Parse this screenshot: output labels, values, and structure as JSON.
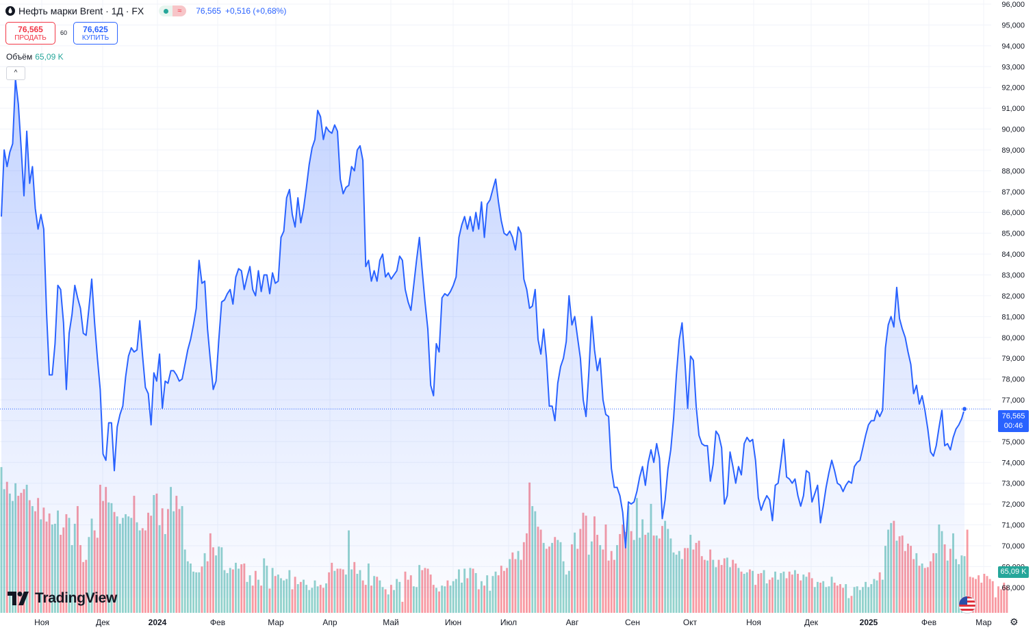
{
  "header": {
    "symbol_title": "Нефть марки Brent · 1Д · FX",
    "last_price": "76,565",
    "change": "+0,516 (+0,68%)",
    "sell_price": "76,565",
    "sell_label": "ПРОДАТЬ",
    "spread": "60",
    "buy_price": "76,625",
    "buy_label": "КУПИТЬ",
    "volume_label": "Объём",
    "volume_value": "65,09 K",
    "collapse_glyph": "^",
    "pill_glyph": "≈"
  },
  "price_tag": {
    "price": "76,565",
    "countdown": "00:46"
  },
  "volume_tag": "65,09 K",
  "brand": {
    "name": "TradingView"
  },
  "colors": {
    "line": "#2962ff",
    "area": "#2962ff",
    "up": "#26a69a",
    "down": "#f23645",
    "grid": "#f0f3fa"
  },
  "chart_data": {
    "type": "line",
    "title": "Нефть марки Brent · 1Д · FX",
    "y_axis": {
      "range": [
        67.5,
        96.1
      ],
      "ticks": [
        68,
        69,
        70,
        71,
        72,
        73,
        74,
        75,
        76,
        77,
        78,
        79,
        80,
        81,
        82,
        83,
        84,
        85,
        86,
        87,
        88,
        89,
        90,
        91,
        92,
        93,
        94,
        95,
        96
      ],
      "tick_labels": [
        "68,000",
        "69,000",
        "70,000",
        "71,000",
        "72,000",
        "73,000",
        "74,000",
        "75,000",
        "76,000",
        "77,000",
        "78,000",
        "79,000",
        "80,000",
        "81,000",
        "82,000",
        "83,000",
        "84,000",
        "85,000",
        "86,000",
        "87,000",
        "88,000",
        "89,000",
        "90,000",
        "91,000",
        "92,000",
        "93,000",
        "94,000",
        "95,000",
        "96,000"
      ]
    },
    "x_axis": {
      "labels": [
        "Ноя",
        "Дек",
        "2024",
        "Фев",
        "Мар",
        "Апр",
        "Май",
        "Июн",
        "Июл",
        "Авг",
        "Сен",
        "Окт",
        "Ноя",
        "Дек",
        "2025",
        "Фев",
        "Мар"
      ]
    },
    "grid": true,
    "last_value": 76.565,
    "series": [
      {
        "values": [
          85.8,
          89.0,
          88.2,
          88.9,
          89.3,
          92.4,
          91.2,
          89.1,
          86.8,
          89.9,
          87.4,
          88.2,
          86.2,
          85.2,
          85.9,
          85.2,
          81.2,
          78.2,
          78.2,
          79.7,
          82.5,
          82.3,
          80.7,
          77.5,
          80.2,
          81.1,
          82.5,
          81.9,
          81.4,
          80.2,
          80.1,
          81.4,
          82.8,
          80.7,
          79.0,
          77.5,
          74.4,
          74.1,
          75.9,
          75.9,
          73.6,
          75.7,
          76.3,
          76.7,
          78.1,
          79.1,
          79.5,
          79.3,
          79.4,
          80.8,
          79.1,
          77.6,
          77.3,
          75.8,
          78.3,
          77.9,
          79.2,
          76.6,
          77.9,
          77.8,
          78.4,
          78.4,
          78.2,
          77.9,
          78.0,
          78.7,
          79.4,
          79.9,
          80.6,
          81.4,
          83.7,
          82.6,
          82.7,
          80.4,
          78.9,
          77.5,
          77.9,
          79.9,
          81.7,
          81.8,
          82.1,
          82.3,
          81.6,
          82.9,
          83.3,
          83.2,
          82.3,
          82.9,
          83.4,
          82.3,
          82.0,
          83.2,
          82.2,
          83.0,
          83.0,
          82.1,
          83.1,
          82.6,
          82.7,
          84.8,
          85.1,
          86.7,
          87.1,
          85.9,
          85.3,
          86.7,
          85.5,
          86.2,
          87.2,
          88.3,
          89.1,
          89.5,
          90.9,
          90.6,
          89.5,
          90.1,
          89.9,
          89.8,
          90.2,
          89.9,
          87.6,
          86.9,
          87.2,
          87.3,
          88.2,
          88.0,
          89.0,
          89.2,
          88.5,
          83.4,
          83.7,
          82.7,
          83.2,
          82.7,
          83.7,
          84.0,
          82.9,
          83.1,
          82.8,
          83.0,
          83.2,
          83.9,
          83.7,
          82.3,
          81.7,
          81.3,
          82.5,
          83.7,
          84.8,
          83.2,
          81.7,
          80.4,
          77.7,
          77.2,
          79.7,
          79.3,
          81.9,
          82.1,
          82.0,
          82.2,
          82.5,
          82.9,
          84.8,
          85.4,
          85.8,
          85.2,
          85.8,
          85.1,
          86.0,
          85.2,
          86.5,
          84.8,
          86.4,
          86.6,
          87.1,
          87.6,
          86.5,
          85.6,
          85.0,
          84.9,
          85.1,
          84.8,
          84.2,
          85.3,
          85.0,
          82.8,
          82.3,
          81.4,
          81.5,
          82.3,
          79.9,
          79.2,
          80.4,
          79.0,
          76.7,
          76.7,
          76.0,
          77.8,
          78.6,
          79.0,
          79.8,
          82.0,
          80.6,
          81.0,
          80.0,
          79.0,
          77.0,
          76.2,
          78.3,
          81.0,
          79.4,
          78.4,
          79.0,
          77.0,
          76.3,
          76.2,
          73.7,
          72.8,
          72.8,
          72.4,
          71.6,
          69.9,
          72.1,
          72.0,
          72.1,
          72.6,
          73.3,
          73.8,
          72.9,
          74.0,
          74.6,
          74.0,
          74.9,
          74.2,
          71.3,
          72.2,
          73.7,
          74.6,
          76.1,
          78.2,
          79.9,
          80.7,
          78.9,
          76.6,
          79.1,
          78.9,
          76.7,
          75.3,
          74.9,
          74.8,
          74.8,
          73.1,
          73.9,
          75.5,
          75.3,
          74.7,
          72.0,
          72.4,
          74.5,
          73.8,
          73.0,
          73.8,
          73.4,
          74.9,
          75.2,
          75.0,
          75.1,
          74.1,
          72.3,
          71.7,
          72.1,
          72.4,
          72.2,
          71.2,
          72.9,
          73.0,
          74.0,
          75.1,
          73.3,
          73.2,
          73.0,
          73.2,
          72.4,
          71.9,
          72.4,
          73.6,
          73.5,
          72.1,
          72.5,
          72.9,
          71.1,
          71.9,
          72.8,
          73.5,
          74.1,
          73.6,
          73.0,
          72.9,
          72.6,
          72.9,
          73.1,
          73.0,
          73.8,
          74.0,
          74.1,
          74.7,
          75.3,
          75.8,
          76.0,
          76.0,
          76.5,
          76.2,
          76.5,
          79.5,
          80.6,
          81.0,
          80.5,
          82.4,
          80.9,
          80.4,
          80.0,
          79.3,
          78.7,
          77.3,
          77.7,
          76.8,
          77.2,
          76.5,
          75.6,
          74.5,
          74.3,
          74.8,
          75.7,
          76.5,
          74.8,
          74.9,
          74.6,
          75.2,
          75.6,
          75.8,
          76.1,
          76.565
        ]
      },
      {
        "name": "Объём",
        "values": [
          1.98,
          1.68,
          1.78,
          1.62,
          1.52,
          1.76,
          1.59,
          1.63,
          1.68,
          1.74,
          1.53,
          1.45,
          1.38,
          1.56,
          1.27,
          1.43,
          1.24,
          1.35,
          1.2,
          1.21,
          1.39,
          1.06,
          1.16,
          1.34,
          1.29,
          0.92,
          1.21,
          1.45,
          0.92,
          0.69,
          0.72,
          1.03,
          1.28,
          1.12,
          1.02,
          1.74,
          1.52,
          1.71,
          1.5,
          1.49,
          1.37,
          1.31,
          1.21,
          1.29,
          1.34,
          1.31,
          1.29,
          1.59,
          1.23,
          1.12,
          1.15,
          1.12,
          1.36,
          1.32,
          1.6,
          1.62,
          1.19,
          1.42,
          1.07,
          1.41,
          1.71,
          1.38,
          1.59,
          1.41,
          1.45,
          0.86,
          0.7,
          0.67,
          0.56,
          0.55,
          0.55,
          0.63,
          0.81,
          0.7,
          1.08,
          0.89,
          0.78,
          0.9,
          0.89,
          0.58,
          0.54,
          0.61,
          0.59,
          0.68,
          0.6,
          0.66,
          0.67,
          0.42,
          0.51,
          0.37,
          0.57,
          0.45,
          0.37,
          0.74,
          0.64,
          0.33,
          0.61,
          0.5,
          0.52,
          0.47,
          0.44,
          0.46,
          0.58,
          0.32,
          0.49,
          0.39,
          0.42,
          0.45,
          0.38,
          0.31,
          0.34,
          0.44,
          0.36,
          0.38,
          0.34,
          0.4,
          0.55,
          0.68,
          0.57,
          0.6,
          0.6,
          0.59,
          0.52,
          1.12,
          0.59,
          0.69,
          0.53,
          0.58,
          0.44,
          0.38,
          0.67,
          0.37,
          0.5,
          0.49,
          0.44,
          0.35,
          0.32,
          0.25,
          0.38,
          0.31,
          0.46,
          0.42,
          0.15,
          0.56,
          0.45,
          0.51,
          0.36,
          0.35,
          0.65,
          0.58,
          0.61,
          0.6,
          0.52,
          0.38,
          0.34,
          0.29,
          0.37,
          0.36,
          0.44,
          0.37,
          0.43,
          0.46,
          0.59,
          0.41,
          0.6,
          0.47,
          0.61,
          0.6,
          0.54,
          0.32,
          0.43,
          0.37,
          0.51,
          0.3,
          0.5,
          0.56,
          0.51,
          0.64,
          0.57,
          0.61,
          0.73,
          0.82,
          0.73,
          0.84,
          0.72,
          0.96,
          1.08,
          1.77,
          1.45,
          1.38,
          1.17,
          1.13,
          0.95,
          0.87,
          0.9,
          0.95,
          1.03,
          0.99,
          0.96,
          0.7,
          0.52,
          0.57,
          0.93,
          1.09,
          0.87,
          1.14,
          1.36,
          1.32,
          0.79,
          0.97,
          1.31,
          1.06,
          0.92,
          0.86,
          1.2,
          0.71,
          0.84,
          0.72,
          0.92,
          1.07,
          1.2,
          1.1,
          1.45,
          1.11,
          0.99,
          1.56,
          1.02,
          1.27,
          1.06,
          1.09,
          1.48,
          1.05,
          1.05,
          1.01,
          1.18,
          1.25,
          1.14,
          1.01,
          0.82,
          0.79,
          0.84,
          0.73,
          0.88,
          0.88,
          1.06,
          0.86,
          0.95,
          0.98,
          0.77,
          0.72,
          0.71,
          0.86,
          0.72,
          0.62,
          0.72,
          0.65,
          0.74,
          0.75,
          0.62,
          0.72,
          0.67,
          0.61,
          0.56,
          0.53,
          0.55,
          0.59,
          0.57,
          0.38,
          0.53,
          0.54,
          0.58,
          0.4,
          0.45,
          0.48,
          0.56,
          0.45,
          0.54,
          0.56,
          0.47,
          0.56,
          0.52,
          0.58,
          0.53,
          0.44,
          0.52,
          0.49,
          0.55,
          0.47,
          0.35,
          0.42,
          0.41,
          0.43,
          0.35,
          0.36,
          0.49,
          0.41,
          0.37,
          0.39,
          0.34,
          0.39,
          0.2,
          0.23,
          0.35,
          0.36,
          0.31,
          0.35,
          0.42,
          0.35,
          0.39,
          0.46,
          0.44,
          0.55,
          0.45,
          0.91,
          1.13,
          1.22,
          1.25,
          0.98,
          1.04,
          1.05,
          0.84,
          0.94,
          0.91,
          0.73,
          0.81,
          0.64,
          0.67,
          0.61,
          0.62,
          0.7,
          0.81,
          0.81,
          1.2,
          1.11,
          0.93,
          0.71,
          0.87,
          1.08,
          0.73,
          0.66,
          0.78,
          0.77,
          1.13,
          0.49,
          0.48,
          0.46,
          0.51,
          0.41,
          0.53,
          0.5,
          0.46,
          0.43,
          0.21,
          0.36,
          0.32,
          0.41,
          0.36
        ]
      }
    ]
  }
}
